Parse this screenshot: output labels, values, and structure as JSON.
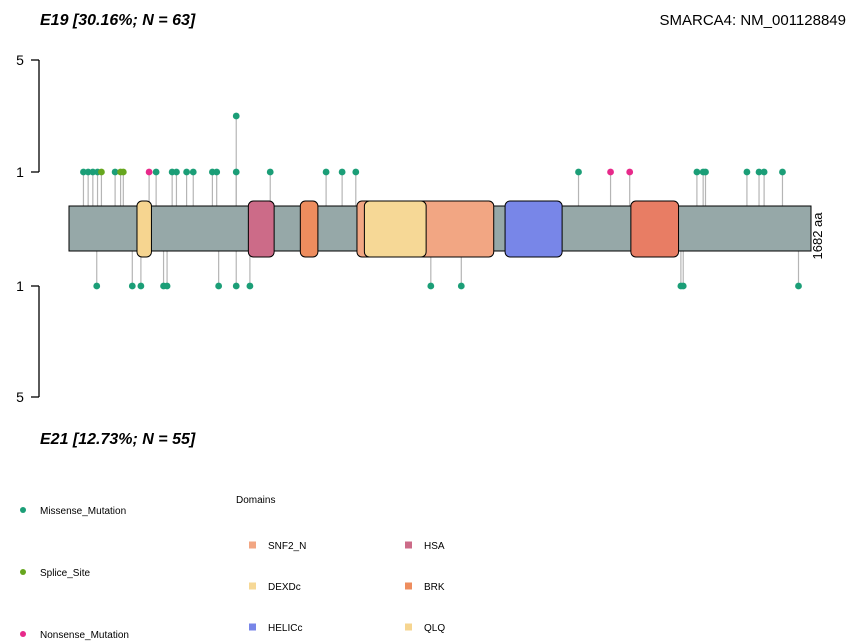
{
  "chart_data": {
    "type": "lollipop",
    "gene_label": "SMARCA4: NM_001128849",
    "protein_length": 1682,
    "length_label": "1682 aa",
    "top_group": {
      "label": "E19 [30.16%; N = 63]"
    },
    "bottom_group": {
      "label": "E21 [12.73%; N = 55]"
    },
    "y_axis": {
      "ticks": [
        "5",
        "1"
      ],
      "bottom_ticks": [
        "1",
        "5"
      ]
    },
    "domains": [
      {
        "name": "QLQ",
        "start": 175,
        "end": 212,
        "color": "#F6D590"
      },
      {
        "name": "HSA",
        "start": 460,
        "end": 526,
        "color": "#CC6B88"
      },
      {
        "name": "BRK",
        "start": 593,
        "end": 638,
        "color": "#EE8D5E"
      },
      {
        "name": "SNF2_N",
        "start": 738,
        "end": 1088,
        "color": "#F2A683"
      },
      {
        "name": "DEXDc",
        "start": 757,
        "end": 915,
        "color": "#F6D896"
      },
      {
        "name": "HELICc",
        "start": 1117,
        "end": 1263,
        "color": "#7886E8"
      },
      {
        "name": "SNF2_N",
        "start": 1439,
        "end": 1561,
        "color": "#E87D64"
      }
    ],
    "mutations_top": [
      {
        "pos": 38,
        "count": 1,
        "type": "Missense_Mutation"
      },
      {
        "pos": 50,
        "count": 1,
        "type": "Missense_Mutation"
      },
      {
        "pos": 62,
        "count": 1,
        "type": "Missense_Mutation"
      },
      {
        "pos": 74,
        "count": 1,
        "type": "Missense_Mutation"
      },
      {
        "pos": 84,
        "count": 1,
        "type": "Splice_Site"
      },
      {
        "pos": 119,
        "count": 1,
        "type": "Missense_Mutation"
      },
      {
        "pos": 133,
        "count": 1,
        "type": "Splice_Site"
      },
      {
        "pos": 140,
        "count": 1,
        "type": "Splice_Site"
      },
      {
        "pos": 206,
        "count": 1,
        "type": "Nonsense_Mutation"
      },
      {
        "pos": 224,
        "count": 1,
        "type": "Missense_Mutation"
      },
      {
        "pos": 265,
        "count": 1,
        "type": "Missense_Mutation"
      },
      {
        "pos": 276,
        "count": 1,
        "type": "Missense_Mutation"
      },
      {
        "pos": 302,
        "count": 1,
        "type": "Missense_Mutation"
      },
      {
        "pos": 319,
        "count": 1,
        "type": "Missense_Mutation"
      },
      {
        "pos": 368,
        "count": 1,
        "type": "Missense_Mutation"
      },
      {
        "pos": 379,
        "count": 1,
        "type": "Missense_Mutation"
      },
      {
        "pos": 429,
        "count": 3,
        "type": "Missense_Mutation"
      },
      {
        "pos": 429,
        "count": 1,
        "type": "Missense_Mutation"
      },
      {
        "pos": 516,
        "count": 1,
        "type": "Missense_Mutation"
      },
      {
        "pos": 659,
        "count": 1,
        "type": "Missense_Mutation"
      },
      {
        "pos": 700,
        "count": 1,
        "type": "Missense_Mutation"
      },
      {
        "pos": 735,
        "count": 1,
        "type": "Missense_Mutation"
      },
      {
        "pos": 1305,
        "count": 1,
        "type": "Missense_Mutation"
      },
      {
        "pos": 1387,
        "count": 1,
        "type": "Nonsense_Mutation"
      },
      {
        "pos": 1436,
        "count": 1,
        "type": "Nonsense_Mutation"
      },
      {
        "pos": 1608,
        "count": 1,
        "type": "Missense_Mutation"
      },
      {
        "pos": 1624,
        "count": 1,
        "type": "Missense_Mutation"
      },
      {
        "pos": 1630,
        "count": 1,
        "type": "Missense_Mutation"
      },
      {
        "pos": 1736,
        "count": 1,
        "type": "Missense_Mutation"
      },
      {
        "pos": 1767,
        "count": 1,
        "type": "Missense_Mutation"
      },
      {
        "pos": 1780,
        "count": 1,
        "type": "Missense_Mutation"
      },
      {
        "pos": 1827,
        "count": 1,
        "type": "Missense_Mutation"
      }
    ],
    "mutations_bottom": [
      {
        "pos": 72,
        "count": 1,
        "type": "Missense_Mutation"
      },
      {
        "pos": 163,
        "count": 1,
        "type": "Missense_Mutation"
      },
      {
        "pos": 185,
        "count": 1,
        "type": "Missense_Mutation"
      },
      {
        "pos": 243,
        "count": 1,
        "type": "Missense_Mutation"
      },
      {
        "pos": 252,
        "count": 1,
        "type": "Missense_Mutation"
      },
      {
        "pos": 384,
        "count": 1,
        "type": "Missense_Mutation"
      },
      {
        "pos": 429,
        "count": 1,
        "type": "Missense_Mutation"
      },
      {
        "pos": 464,
        "count": 1,
        "type": "Missense_Mutation"
      },
      {
        "pos": 927,
        "count": 1,
        "type": "Missense_Mutation"
      },
      {
        "pos": 1005,
        "count": 1,
        "type": "Missense_Mutation"
      },
      {
        "pos": 1567,
        "count": 1,
        "type": "Missense_Mutation"
      },
      {
        "pos": 1573,
        "count": 1,
        "type": "Missense_Mutation"
      },
      {
        "pos": 1868,
        "count": 1,
        "type": "Missense_Mutation"
      }
    ],
    "mutation_colors": {
      "Missense_Mutation": "#1B9E77",
      "Splice_Site": "#66A61E",
      "Nonsense_Mutation": "#E7298A"
    },
    "legend_mutations": [
      "Missense_Mutation",
      "Splice_Site",
      "Nonsense_Mutation"
    ],
    "legend_domains_title": "Domains",
    "legend_domains": [
      {
        "name": "SNF2_N",
        "color": "#F2A683"
      },
      {
        "name": "HSA",
        "color": "#CC6B88"
      },
      {
        "name": "DEXDc",
        "color": "#F6D896"
      },
      {
        "name": "BRK",
        "color": "#EE8D5E"
      },
      {
        "name": "HELICc",
        "color": "#7886E8"
      },
      {
        "name": "QLQ",
        "color": "#F6D590"
      }
    ]
  }
}
